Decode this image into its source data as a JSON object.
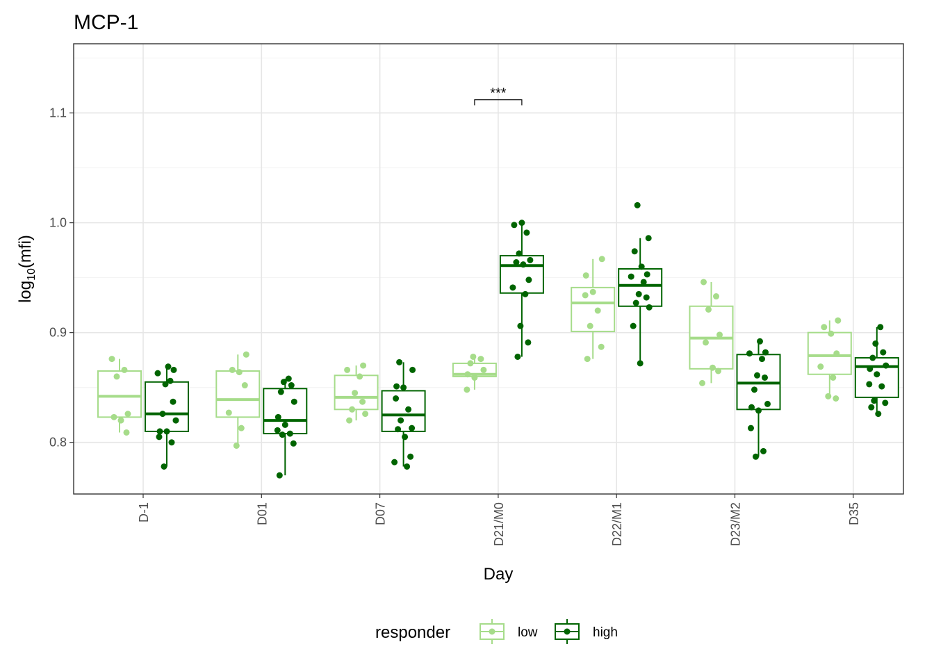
{
  "title": "MCP-1",
  "chart_data": {
    "type": "box",
    "title": "MCP-1",
    "xlabel": "Day",
    "ylabel_main": "log",
    "ylabel_sub": "10",
    "ylabel_tail": "(mfi)",
    "ylim": [
      0.753,
      1.163
    ],
    "yticks": [
      0.8,
      0.9,
      1.0,
      1.1
    ],
    "ytick_labels": [
      "0.8",
      "0.9",
      "1.0",
      "1.1"
    ],
    "categories": [
      "D-1",
      "D01",
      "D07",
      "D21/M0",
      "D22/M1",
      "D23/M2",
      "D35"
    ],
    "grid": true,
    "legend": {
      "title": "responder",
      "position": "bottom",
      "labels": [
        "low",
        "high"
      ]
    },
    "series": [
      {
        "name": "low",
        "color": "#a6dc8a",
        "boxes": [
          {
            "q1": 0.823,
            "median": 0.842,
            "q3": 0.865,
            "wlo": 0.809,
            "whi": 0.876
          },
          {
            "q1": 0.823,
            "median": 0.839,
            "q3": 0.865,
            "wlo": 0.797,
            "whi": 0.88
          },
          {
            "q1": 0.83,
            "median": 0.841,
            "q3": 0.861,
            "wlo": 0.82,
            "whi": 0.87
          },
          {
            "q1": 0.86,
            "median": 0.862,
            "q3": 0.872,
            "wlo": 0.848,
            "whi": 0.878
          },
          {
            "q1": 0.901,
            "median": 0.927,
            "q3": 0.941,
            "wlo": 0.876,
            "whi": 0.967
          },
          {
            "q1": 0.867,
            "median": 0.895,
            "q3": 0.924,
            "wlo": 0.854,
            "whi": 0.946
          },
          {
            "q1": 0.862,
            "median": 0.879,
            "q3": 0.9,
            "wlo": 0.84,
            "whi": 0.911
          }
        ],
        "points": [
          [
            0.876,
            0.866,
            0.86,
            0.826,
            0.823,
            0.82,
            0.809
          ],
          [
            0.88,
            0.866,
            0.864,
            0.852,
            0.827,
            0.813,
            0.797
          ],
          [
            0.87,
            0.866,
            0.86,
            0.845,
            0.837,
            0.83,
            0.826,
            0.82
          ],
          [
            0.878,
            0.876,
            0.872,
            0.866,
            0.862,
            0.859,
            0.848
          ],
          [
            0.967,
            0.952,
            0.937,
            0.934,
            0.92,
            0.906,
            0.887,
            0.876
          ],
          [
            0.946,
            0.933,
            0.921,
            0.898,
            0.891,
            0.868,
            0.865,
            0.854
          ],
          [
            0.911,
            0.905,
            0.899,
            0.881,
            0.869,
            0.859,
            0.842,
            0.84
          ]
        ]
      },
      {
        "name": "high",
        "color": "#006400",
        "boxes": [
          {
            "q1": 0.81,
            "median": 0.826,
            "q3": 0.855,
            "wlo": 0.778,
            "whi": 0.869
          },
          {
            "q1": 0.808,
            "median": 0.82,
            "q3": 0.849,
            "wlo": 0.77,
            "whi": 0.858
          },
          {
            "q1": 0.81,
            "median": 0.825,
            "q3": 0.847,
            "wlo": 0.778,
            "whi": 0.873
          },
          {
            "q1": 0.936,
            "median": 0.961,
            "q3": 0.97,
            "wlo": 0.878,
            "whi": 1.0
          },
          {
            "q1": 0.924,
            "median": 0.943,
            "q3": 0.958,
            "wlo": 0.872,
            "whi": 0.986
          },
          {
            "q1": 0.83,
            "median": 0.854,
            "q3": 0.88,
            "wlo": 0.787,
            "whi": 0.892
          },
          {
            "q1": 0.841,
            "median": 0.869,
            "q3": 0.877,
            "wlo": 0.826,
            "whi": 0.905
          }
        ],
        "points": [
          [
            0.869,
            0.866,
            0.863,
            0.856,
            0.853,
            0.837,
            0.826,
            0.82,
            0.81,
            0.81,
            0.805,
            0.8,
            0.778
          ],
          [
            0.858,
            0.855,
            0.852,
            0.846,
            0.837,
            0.823,
            0.816,
            0.811,
            0.808,
            0.807,
            0.799,
            0.77
          ],
          [
            0.873,
            0.866,
            0.851,
            0.85,
            0.84,
            0.83,
            0.82,
            0.813,
            0.812,
            0.805,
            0.787,
            0.782,
            0.778
          ],
          [
            1.0,
            0.998,
            0.991,
            0.972,
            0.966,
            0.964,
            0.962,
            0.948,
            0.941,
            0.935,
            0.906,
            0.891,
            0.878
          ],
          [
            1.016,
            0.986,
            0.974,
            0.96,
            0.953,
            0.951,
            0.946,
            0.935,
            0.932,
            0.927,
            0.923,
            0.906,
            0.872
          ],
          [
            0.892,
            0.882,
            0.881,
            0.876,
            0.861,
            0.859,
            0.848,
            0.835,
            0.832,
            0.829,
            0.813,
            0.792,
            0.787
          ],
          [
            0.905,
            0.89,
            0.882,
            0.877,
            0.87,
            0.867,
            0.862,
            0.853,
            0.851,
            0.838,
            0.836,
            0.832,
            0.826
          ]
        ]
      }
    ],
    "annotations": [
      {
        "label": "***",
        "category_index": 3,
        "y": 1.112
      }
    ]
  }
}
